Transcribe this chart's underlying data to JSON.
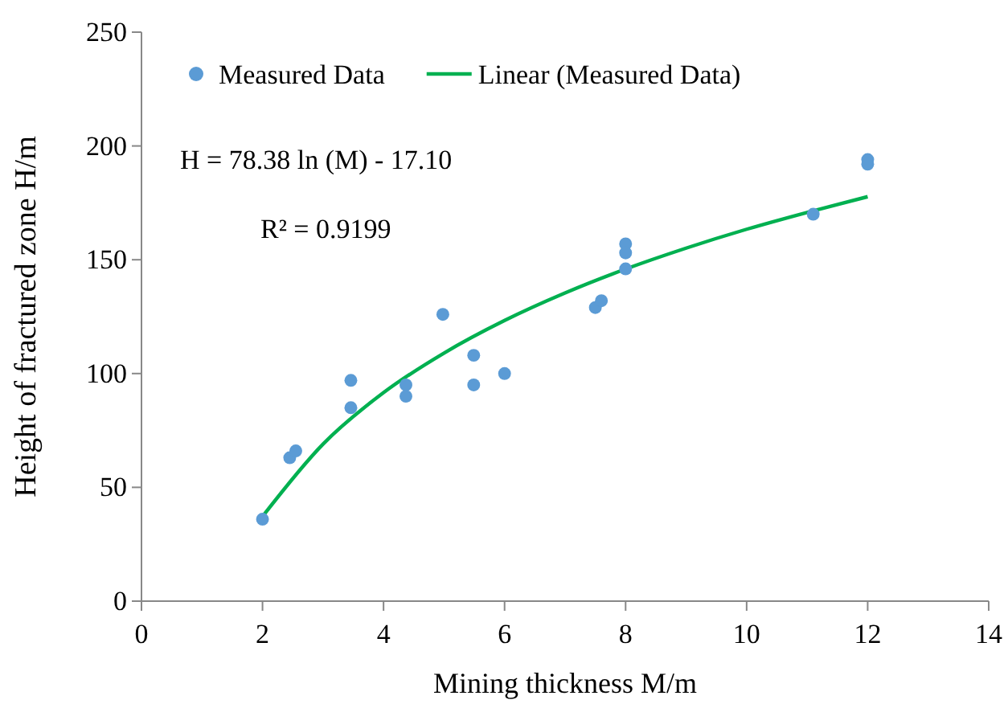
{
  "chart_data": {
    "type": "scatter",
    "xlabel": "Mining thickness M/m",
    "ylabel": "Height of fractured zone H/m",
    "xlim": [
      0,
      14
    ],
    "xticks": [
      0,
      2,
      4,
      6,
      8,
      10,
      12,
      14
    ],
    "ylim": [
      0,
      250
    ],
    "yticks": [
      0,
      50,
      100,
      150,
      200,
      250
    ],
    "grid": false,
    "legend": "top left",
    "annotations": [
      "H = 78.38 ln (M) - 17.10",
      "R² = 0.9199"
    ],
    "series": [
      {
        "name": "Measured Data",
        "type": "scatter",
        "marker": "circle",
        "color": "#5b9bd5",
        "x": [
          2.0,
          2.45,
          2.55,
          3.46,
          3.46,
          4.37,
          4.37,
          4.98,
          5.49,
          5.49,
          6.0,
          7.5,
          7.6,
          8.0,
          8.0,
          8.0,
          11.1,
          12.0,
          12.0
        ],
        "values": [
          36,
          63,
          66,
          85,
          97,
          90,
          95,
          126,
          108,
          95,
          100,
          129,
          132,
          157,
          153,
          146,
          170,
          194,
          192
        ]
      },
      {
        "name": "Linear (Measured Data)",
        "type": "line",
        "marker": "none",
        "color": "#00b050",
        "line_style": "solid",
        "x": [
          2,
          3,
          4,
          5,
          6,
          7,
          8,
          9,
          10,
          11,
          12
        ],
        "values": [
          37.2,
          69.0,
          91.6,
          109.0,
          123.3,
          135.4,
          145.9,
          155.1,
          163.4,
          170.8,
          177.7
        ]
      }
    ]
  }
}
